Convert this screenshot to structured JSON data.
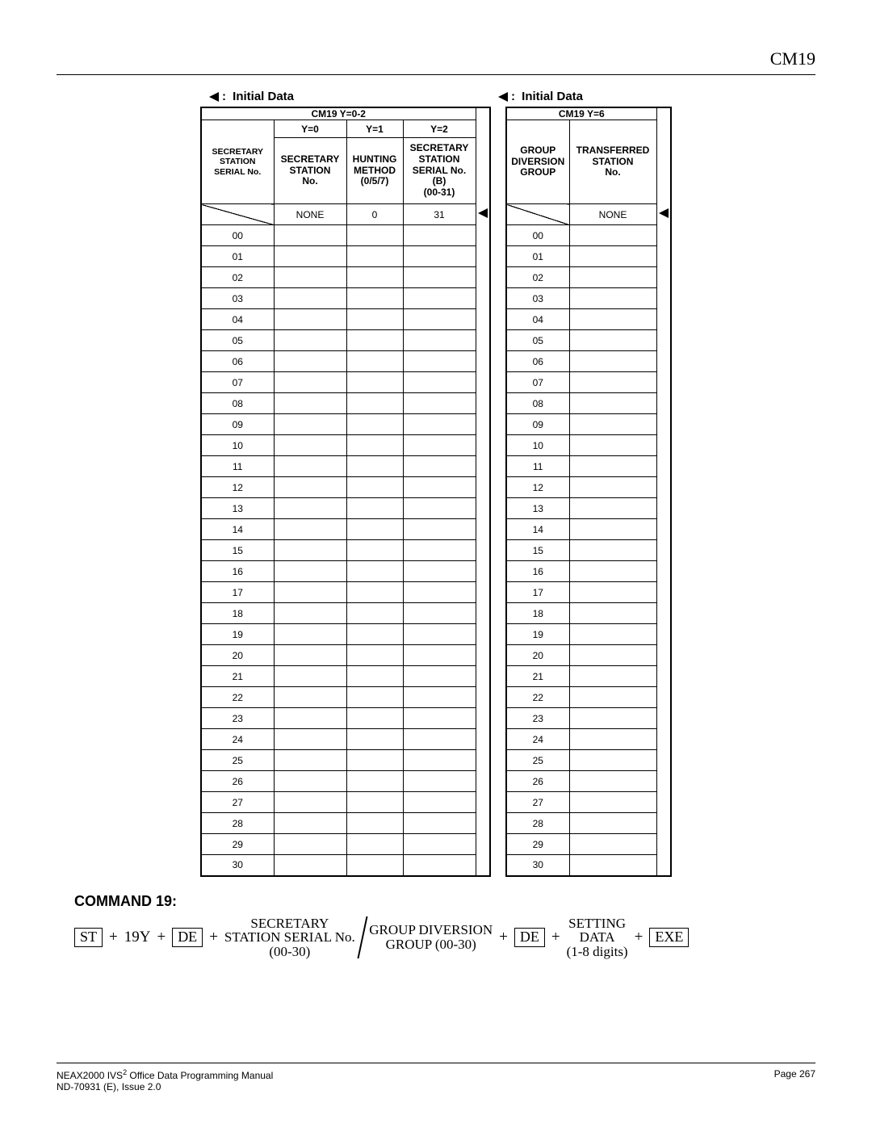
{
  "header": {
    "code": "CM19"
  },
  "initial_label": "Initial Data",
  "tables": {
    "left": {
      "title": "CM19  Y=0-2",
      "ycols": [
        "Y=0",
        "Y=1",
        "Y=2"
      ],
      "col_headers": [
        "SECRETARY STATION SERIAL No.",
        "SECRETARY STATION No.",
        "HUNTING METHOD (0/5/7)",
        "SECRETARY STATION SERIAL No. (B) (00-31)"
      ],
      "default_row": [
        "",
        "NONE",
        "0",
        "31"
      ],
      "rows": [
        "00",
        "01",
        "02",
        "03",
        "04",
        "05",
        "06",
        "07",
        "08",
        "09",
        "10",
        "11",
        "12",
        "13",
        "14",
        "15",
        "16",
        "17",
        "18",
        "19",
        "20",
        "21",
        "22",
        "23",
        "24",
        "25",
        "26",
        "27",
        "28",
        "29",
        "30"
      ]
    },
    "right": {
      "title": "CM19  Y=6",
      "col_headers": [
        "GROUP DIVERSION GROUP",
        "TRANSFERRED STATION No."
      ],
      "default_row": [
        "",
        "NONE"
      ],
      "rows": [
        "00",
        "01",
        "02",
        "03",
        "04",
        "05",
        "06",
        "07",
        "08",
        "09",
        "10",
        "11",
        "12",
        "13",
        "14",
        "15",
        "16",
        "17",
        "18",
        "19",
        "20",
        "21",
        "22",
        "23",
        "24",
        "25",
        "26",
        "27",
        "28",
        "29",
        "30"
      ]
    }
  },
  "command": {
    "title": "COMMAND 19:",
    "keys": {
      "st": "ST",
      "de": "DE",
      "exe": "EXE"
    },
    "plus": "+",
    "y19": "19Y",
    "secretary": {
      "l1": "SECRETARY",
      "l2": "STATION SERIAL No.",
      "l3": "(00-30)"
    },
    "group": {
      "l1": "GROUP DIVERSION",
      "l2": "GROUP (00-30)"
    },
    "setting": {
      "l1": "SETTING",
      "l2": "DATA",
      "l3": "(1-8 digits)"
    }
  },
  "footer": {
    "left1": "NEAX2000 IVS",
    "left1_sup": "2",
    "left1_rest": " Office Data Programming Manual",
    "left2": "ND-70931 (E), Issue 2.0",
    "right": "Page 267"
  }
}
